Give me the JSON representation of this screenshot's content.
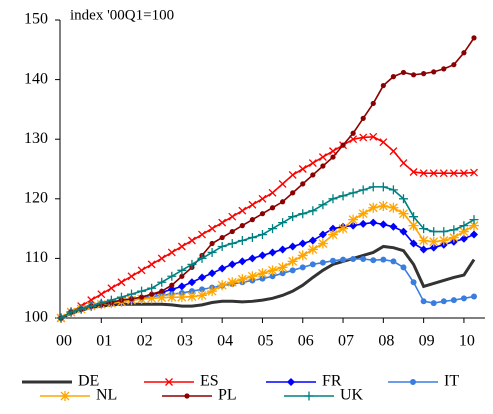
{
  "chart_data": {
    "type": "line",
    "annotation": "index '00Q1=100",
    "categories": [
      "00",
      null,
      null,
      null,
      "01",
      null,
      null,
      null,
      "02",
      null,
      null,
      null,
      "03",
      null,
      null,
      null,
      "04",
      null,
      null,
      null,
      "05",
      null,
      null,
      null,
      "06",
      null,
      null,
      null,
      "07",
      null,
      null,
      null,
      "08",
      null,
      null,
      null,
      "09",
      null,
      null,
      null,
      "10",
      null
    ],
    "ylim": [
      100,
      150
    ],
    "yticks": [
      100,
      110,
      120,
      130,
      140,
      150
    ],
    "series": [
      {
        "name": "DE",
        "color": "#333333",
        "marker": "none",
        "values": [
          100,
          100.8,
          101.3,
          101.8,
          102,
          102.2,
          102.3,
          102.3,
          102.3,
          102.3,
          102.3,
          102.2,
          102,
          102,
          102.2,
          102.6,
          102.8,
          102.8,
          102.7,
          102.8,
          103,
          103.3,
          103.8,
          104.5,
          105.5,
          106.8,
          108,
          109,
          109.5,
          110,
          110.5,
          111,
          112,
          111.8,
          111.3,
          109,
          105.3,
          105.8,
          106.3,
          106.8,
          107.2,
          109.8
        ]
      },
      {
        "name": "ES",
        "color": "#ff0000",
        "marker": "x",
        "values": [
          100,
          101,
          102,
          103,
          104,
          105,
          106,
          107,
          108,
          109,
          110,
          111,
          112,
          113,
          114,
          115,
          116,
          117,
          118,
          119,
          120,
          121,
          122.5,
          124,
          125,
          126,
          127,
          128,
          129,
          130,
          130.3,
          130.4,
          129.5,
          128,
          126,
          124.5,
          124.3,
          124.3,
          124.3,
          124.3,
          124.3,
          124.4
        ]
      },
      {
        "name": "FR",
        "color": "#0000ff",
        "marker": "diamond",
        "values": [
          100,
          101,
          101.5,
          102,
          102.3,
          102.5,
          102.8,
          103,
          103.3,
          103.8,
          104.3,
          104.8,
          105.3,
          106,
          106.8,
          107.5,
          108.3,
          109,
          109.5,
          110,
          110.5,
          111,
          111.5,
          112,
          112.5,
          113,
          114,
          115,
          115.3,
          115.5,
          115.8,
          116,
          115.7,
          115.3,
          114.5,
          112.5,
          111.5,
          111.8,
          112.3,
          112.8,
          113.3,
          114
        ]
      },
      {
        "name": "IT",
        "color": "#3a7de0",
        "marker": "circle",
        "values": [
          100,
          101,
          101.7,
          102.2,
          102.5,
          102.7,
          103,
          103.2,
          103.4,
          103.6,
          103.8,
          104,
          104.2,
          104.5,
          104.8,
          105.1,
          105.4,
          105.7,
          106,
          106.3,
          106.6,
          107,
          107.5,
          108,
          108.5,
          109,
          109.3,
          109.6,
          109.8,
          109.9,
          109.9,
          109.7,
          109.8,
          109.5,
          108.5,
          106,
          102.8,
          102.5,
          102.8,
          103,
          103.3,
          103.6
        ]
      },
      {
        "name": "NL",
        "color": "#ffa500",
        "marker": "star",
        "values": [
          100,
          101,
          101.5,
          102,
          102.3,
          102.5,
          102.7,
          103,
          103.2,
          103.3,
          103.4,
          103.5,
          103.5,
          103.6,
          103.8,
          104.5,
          105.5,
          106,
          106.5,
          107,
          107.5,
          108,
          108.5,
          109.5,
          110.5,
          111.5,
          112.5,
          114,
          115,
          116.5,
          117.5,
          118.5,
          118.8,
          118.5,
          117.5,
          115.5,
          113,
          112.8,
          113,
          113.5,
          114.5,
          115.5
        ]
      },
      {
        "name": "PL",
        "color": "#8b0000",
        "marker": "dot",
        "values": [
          100,
          101,
          101.5,
          102,
          102.3,
          102.6,
          103,
          103.2,
          103.5,
          104,
          104.5,
          105.5,
          107,
          108.5,
          110.5,
          112.5,
          113.5,
          114.5,
          115.5,
          116.5,
          117.5,
          118.5,
          119.5,
          121,
          122.5,
          124,
          125.5,
          127,
          129,
          131,
          133.5,
          136,
          139,
          140.5,
          141.2,
          140.8,
          141,
          141.3,
          141.8,
          142.5,
          144.5,
          147
        ]
      },
      {
        "name": "UK",
        "color": "#008080",
        "marker": "plus",
        "values": [
          100,
          101,
          101.5,
          102,
          102.5,
          103,
          103.5,
          104,
          104.5,
          105,
          106,
          107,
          108,
          109,
          110,
          111,
          112,
          112.5,
          113,
          113.5,
          114,
          115,
          116,
          117,
          117.5,
          118,
          119,
          120,
          120.5,
          121,
          121.5,
          122,
          122,
          121.5,
          120,
          117,
          115,
          114.5,
          114.5,
          114.8,
          115.5,
          116.5
        ]
      }
    ]
  }
}
